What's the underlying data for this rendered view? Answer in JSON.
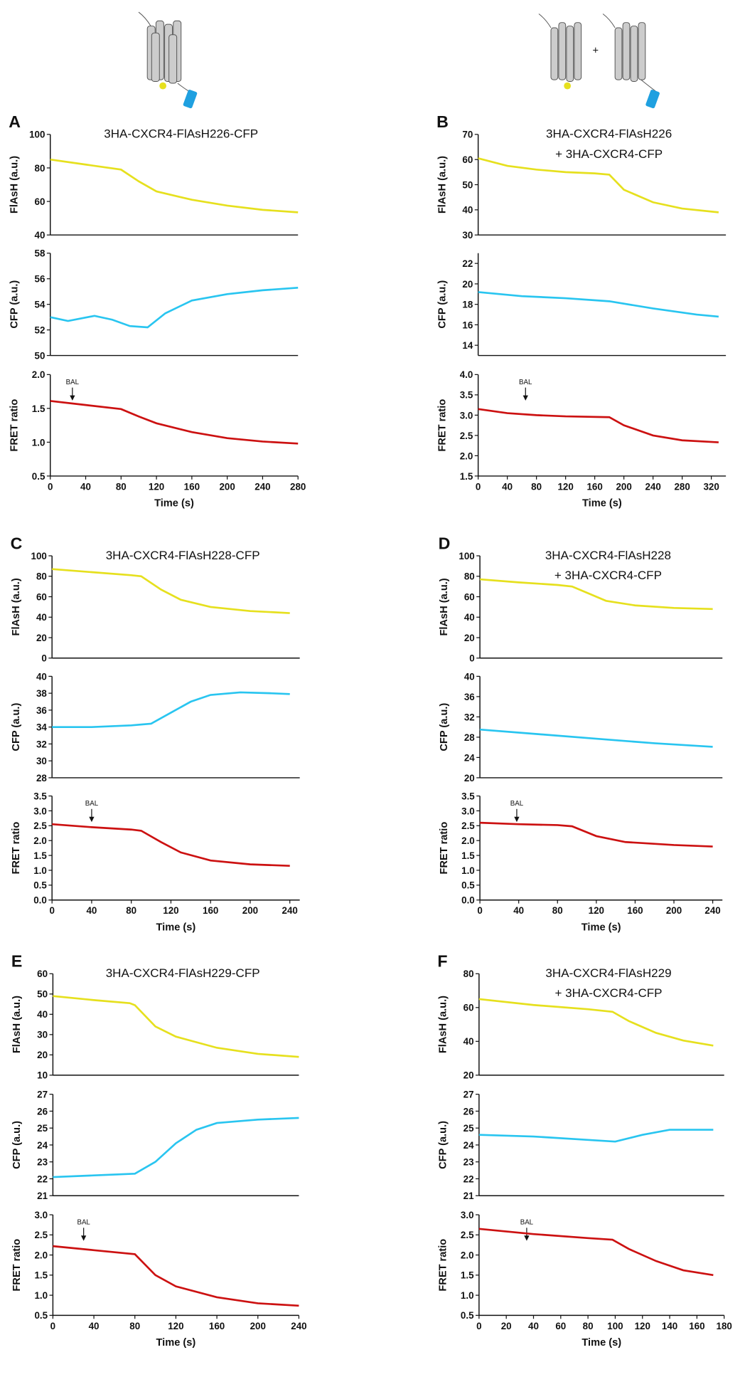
{
  "chart_data": [
    {
      "type": "line",
      "panel": "A",
      "title": "3HA-CXCR4-FlAsH226-CFP",
      "ylabel": "FlAsH (a.u.)",
      "xlim": [
        0,
        280
      ],
      "ylim": [
        40,
        100
      ],
      "yticks": [
        40,
        60,
        80,
        100
      ],
      "series": [
        {
          "color": "#e6e01e",
          "x": [
            0,
            40,
            80,
            100,
            120,
            160,
            200,
            240,
            280
          ],
          "values": [
            85,
            82,
            79,
            72,
            66,
            61,
            57.5,
            55,
            53.5
          ]
        }
      ]
    },
    {
      "type": "line",
      "ylabel": "CFP (a.u.)",
      "xlim": [
        0,
        280
      ],
      "ylim": [
        50,
        58
      ],
      "yticks": [
        50,
        52,
        54,
        56,
        58
      ],
      "series": [
        {
          "color": "#29c5f0",
          "x": [
            0,
            20,
            50,
            70,
            90,
            110,
            130,
            160,
            200,
            240,
            280
          ],
          "values": [
            53,
            52.7,
            53.1,
            52.8,
            52.3,
            52.2,
            53.3,
            54.3,
            54.8,
            55.1,
            55.3
          ]
        }
      ]
    },
    {
      "type": "line",
      "ylabel": "FRET ratio",
      "xlabel": "Time (s)",
      "xlim": [
        0,
        280
      ],
      "xticks": [
        0,
        40,
        80,
        120,
        160,
        200,
        240,
        280
      ],
      "ylim": [
        0.5,
        2.0
      ],
      "yticks": [
        0.5,
        {
          "value": 1,
          "label": "1.0"
        },
        1.5,
        {
          "value": 2,
          "label": "2.0"
        }
      ],
      "annotation": {
        "text": "BAL",
        "x": 25
      },
      "series": [
        {
          "color": "#cc1111",
          "x": [
            0,
            40,
            80,
            100,
            120,
            160,
            200,
            240,
            280
          ],
          "values": [
            1.61,
            1.55,
            1.49,
            1.38,
            1.28,
            1.15,
            1.06,
            1.01,
            0.98
          ]
        }
      ]
    },
    {
      "type": "line",
      "panel": "B",
      "title": "3HA-CXCR4-FlAsH226",
      "subtitle": "+ 3HA-CXCR4-CFP",
      "ylabel": "FlAsH (a.u.)",
      "xlim": [
        0,
        340
      ],
      "ylim": [
        30,
        70
      ],
      "yticks": [
        30,
        40,
        50,
        60,
        70
      ],
      "series": [
        {
          "color": "#e6e01e",
          "x": [
            0,
            40,
            80,
            120,
            160,
            180,
            200,
            240,
            280,
            330
          ],
          "values": [
            60.5,
            57.5,
            56,
            55,
            54.5,
            54,
            48,
            43,
            40.5,
            39
          ]
        }
      ]
    },
    {
      "type": "line",
      "ylabel": "CFP (a.u.)",
      "xlim": [
        0,
        340
      ],
      "ylim": [
        13,
        23
      ],
      "yticks": [
        14,
        16,
        18,
        20,
        22
      ],
      "series": [
        {
          "color": "#29c5f0",
          "x": [
            0,
            60,
            120,
            180,
            240,
            300,
            330
          ],
          "values": [
            19.2,
            18.8,
            18.6,
            18.3,
            17.6,
            17,
            16.8
          ]
        }
      ]
    },
    {
      "type": "line",
      "ylabel": "FRET ratio",
      "xlabel": "Time (s)",
      "xlim": [
        0,
        340
      ],
      "xticks": [
        0,
        40,
        80,
        120,
        160,
        200,
        240,
        280,
        320
      ],
      "ylim": [
        1.5,
        4.0
      ],
      "yticks": [
        1.5,
        {
          "value": 2,
          "label": "2.0"
        },
        2.5,
        {
          "value": 3,
          "label": "3.0"
        },
        3.5,
        {
          "value": 4,
          "label": "4.0"
        }
      ],
      "annotation": {
        "text": "BAL",
        "x": 65
      },
      "series": [
        {
          "color": "#cc1111",
          "x": [
            0,
            40,
            80,
            120,
            180,
            200,
            240,
            280,
            330
          ],
          "values": [
            3.15,
            3.05,
            3.0,
            2.97,
            2.95,
            2.75,
            2.5,
            2.38,
            2.33
          ]
        }
      ]
    },
    {
      "type": "line",
      "panel": "C",
      "title": "3HA-CXCR4-FlAsH228-CFP",
      "ylabel": "FlAsH (a.u.)",
      "xlim": [
        0,
        250
      ],
      "ylim": [
        0,
        100
      ],
      "yticks": [
        0,
        20,
        40,
        60,
        80,
        100
      ],
      "series": [
        {
          "color": "#e6e01e",
          "x": [
            0,
            40,
            80,
            90,
            110,
            130,
            160,
            200,
            240
          ],
          "values": [
            87,
            84,
            81,
            80,
            67,
            57,
            50,
            46,
            44
          ]
        }
      ]
    },
    {
      "type": "line",
      "ylabel": "CFP (a.u.)",
      "xlim": [
        0,
        250
      ],
      "ylim": [
        28,
        40
      ],
      "yticks": [
        28,
        30,
        32,
        34,
        36,
        38,
        40
      ],
      "series": [
        {
          "color": "#29c5f0",
          "x": [
            0,
            40,
            80,
            100,
            120,
            140,
            160,
            190,
            220,
            240
          ],
          "values": [
            34,
            34,
            34.2,
            34.4,
            35.7,
            37,
            37.8,
            38.1,
            38,
            37.9
          ]
        }
      ]
    },
    {
      "type": "line",
      "ylabel": "FRET ratio",
      "xlabel": "Time (s)",
      "xlim": [
        0,
        250
      ],
      "xticks": [
        0,
        40,
        80,
        120,
        160,
        200,
        240
      ],
      "ylim": [
        0,
        3.5
      ],
      "yticks": [
        {
          "value": 0,
          "label": "0.0"
        },
        0.5,
        {
          "value": 1,
          "label": "1.0"
        },
        1.5,
        {
          "value": 2,
          "label": "2.0"
        },
        2.5,
        {
          "value": 3,
          "label": "3.0"
        },
        3.5
      ],
      "annotation": {
        "text": "BAL",
        "x": 40
      },
      "series": [
        {
          "color": "#cc1111",
          "x": [
            0,
            40,
            80,
            90,
            110,
            130,
            160,
            200,
            240
          ],
          "values": [
            2.55,
            2.45,
            2.37,
            2.33,
            1.95,
            1.6,
            1.33,
            1.2,
            1.15
          ]
        }
      ]
    },
    {
      "type": "line",
      "panel": "D",
      "title": "3HA-CXCR4-FlAsH228",
      "subtitle": "+ 3HA-CXCR4-CFP",
      "ylabel": "FlAsH (a.u.)",
      "xlim": [
        0,
        250
      ],
      "ylim": [
        0,
        100
      ],
      "yticks": [
        0,
        20,
        40,
        60,
        80,
        100
      ],
      "series": [
        {
          "color": "#e6e01e",
          "x": [
            0,
            40,
            80,
            95,
            110,
            130,
            160,
            200,
            240
          ],
          "values": [
            77,
            74,
            71.5,
            70,
            64,
            56,
            51.5,
            49,
            48
          ]
        }
      ]
    },
    {
      "type": "line",
      "ylabel": "CFP (a.u.)",
      "xlim": [
        0,
        250
      ],
      "ylim": [
        20,
        40
      ],
      "yticks": [
        20,
        24,
        28,
        32,
        36,
        40
      ],
      "series": [
        {
          "color": "#29c5f0",
          "x": [
            0,
            60,
            120,
            180,
            240
          ],
          "values": [
            29.5,
            28.6,
            27.7,
            26.8,
            26.1
          ]
        }
      ]
    },
    {
      "type": "line",
      "ylabel": "FRET ratio",
      "xlabel": "Time (s)",
      "xlim": [
        0,
        250
      ],
      "xticks": [
        0,
        40,
        80,
        120,
        160,
        200,
        240
      ],
      "ylim": [
        0,
        3.5
      ],
      "yticks": [
        {
          "value": 0,
          "label": "0.0"
        },
        0.5,
        {
          "value": 1,
          "label": "1.0"
        },
        1.5,
        {
          "value": 2,
          "label": "2.0"
        },
        2.5,
        {
          "value": 3,
          "label": "3.0"
        },
        3.5
      ],
      "annotation": {
        "text": "BAL",
        "x": 38
      },
      "series": [
        {
          "color": "#cc1111",
          "x": [
            0,
            40,
            80,
            95,
            120,
            150,
            200,
            240
          ],
          "values": [
            2.6,
            2.55,
            2.52,
            2.48,
            2.15,
            1.95,
            1.85,
            1.8
          ]
        }
      ]
    },
    {
      "type": "line",
      "panel": "E",
      "title": "3HA-CXCR4-FlAsH229-CFP",
      "ylabel": "FlAsH (a.u.)",
      "xlim": [
        0,
        240
      ],
      "ylim": [
        10,
        60
      ],
      "yticks": [
        10,
        20,
        30,
        40,
        50,
        60
      ],
      "series": [
        {
          "color": "#e6e01e",
          "x": [
            0,
            40,
            75,
            80,
            100,
            120,
            160,
            200,
            240
          ],
          "values": [
            49,
            47,
            45.5,
            44.5,
            34,
            29,
            23.5,
            20.5,
            19
          ]
        }
      ]
    },
    {
      "type": "line",
      "ylabel": "CFP (a.u.)",
      "xlim": [
        0,
        240
      ],
      "ylim": [
        21,
        27
      ],
      "yticks": [
        21,
        22,
        23,
        24,
        25,
        26,
        27
      ],
      "series": [
        {
          "color": "#29c5f0",
          "x": [
            0,
            40,
            80,
            100,
            120,
            140,
            160,
            200,
            240
          ],
          "values": [
            22.1,
            22.2,
            22.3,
            23,
            24.1,
            24.9,
            25.3,
            25.5,
            25.6
          ]
        }
      ]
    },
    {
      "type": "line",
      "ylabel": "FRET ratio",
      "xlabel": "Time (s)",
      "xlim": [
        0,
        240
      ],
      "xticks": [
        0,
        40,
        80,
        120,
        160,
        200,
        240
      ],
      "ylim": [
        0.5,
        3.0
      ],
      "yticks": [
        0.5,
        {
          "value": 1,
          "label": "1.0"
        },
        1.5,
        {
          "value": 2,
          "label": "2.0"
        },
        2.5,
        {
          "value": 3,
          "label": "3.0"
        }
      ],
      "annotation": {
        "text": "BAL",
        "x": 30
      },
      "series": [
        {
          "color": "#cc1111",
          "x": [
            0,
            40,
            80,
            100,
            120,
            160,
            200,
            240
          ],
          "values": [
            2.22,
            2.12,
            2.02,
            1.5,
            1.22,
            0.95,
            0.8,
            0.74
          ]
        }
      ]
    },
    {
      "type": "line",
      "panel": "F",
      "title": "3HA-CXCR4-FlAsH229",
      "subtitle": "+ 3HA-CXCR4-CFP",
      "ylabel": "FlAsH (a.u.)",
      "xlim": [
        0,
        180
      ],
      "ylim": [
        20,
        80
      ],
      "yticks": [
        20,
        40,
        60,
        80
      ],
      "series": [
        {
          "color": "#e6e01e",
          "x": [
            0,
            40,
            80,
            98,
            110,
            130,
            150,
            172
          ],
          "values": [
            65,
            61.5,
            59,
            57.5,
            52,
            45,
            40.5,
            37.5
          ]
        }
      ]
    },
    {
      "type": "line",
      "ylabel": "CFP (a.u.)",
      "xlim": [
        0,
        180
      ],
      "ylim": [
        21,
        27
      ],
      "yticks": [
        21,
        22,
        23,
        24,
        25,
        26,
        27
      ],
      "series": [
        {
          "color": "#29c5f0",
          "x": [
            0,
            40,
            80,
            100,
            120,
            140,
            172
          ],
          "values": [
            24.6,
            24.5,
            24.3,
            24.2,
            24.6,
            24.9,
            24.9
          ]
        }
      ]
    },
    {
      "type": "line",
      "ylabel": "FRET ratio",
      "xlabel": "Time (s)",
      "xlim": [
        0,
        180
      ],
      "xticks": [
        0,
        20,
        40,
        60,
        80,
        100,
        120,
        140,
        160,
        180
      ],
      "ylim": [
        0.5,
        3.0
      ],
      "yticks": [
        0.5,
        {
          "value": 1,
          "label": "1.0"
        },
        1.5,
        {
          "value": 2,
          "label": "2.0"
        },
        2.5,
        {
          "value": 3,
          "label": "3.0"
        }
      ],
      "annotation": {
        "text": "BAL",
        "x": 35
      },
      "series": [
        {
          "color": "#cc1111",
          "x": [
            0,
            40,
            80,
            98,
            110,
            130,
            150,
            172
          ],
          "values": [
            2.65,
            2.52,
            2.42,
            2.38,
            2.15,
            1.85,
            1.62,
            1.5
          ]
        }
      ]
    }
  ]
}
